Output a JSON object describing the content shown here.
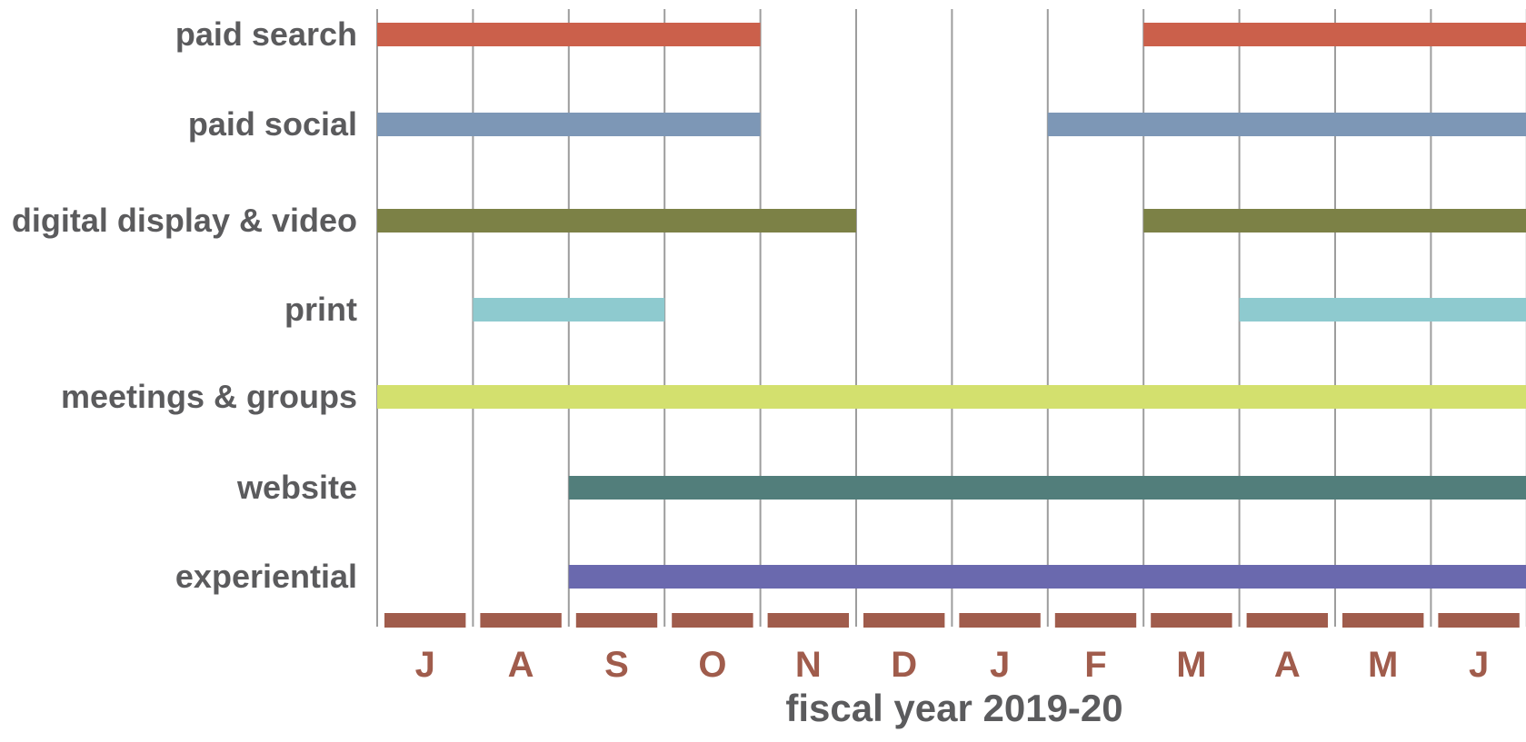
{
  "chart_data": {
    "type": "bar",
    "subtype": "gantt",
    "xlabel": "fiscal year 2019-20",
    "months": [
      "J",
      "A",
      "S",
      "O",
      "N",
      "D",
      "J",
      "F",
      "M",
      "A",
      "M",
      "J"
    ],
    "month_marker_color": "#a05c4c",
    "grid": true,
    "series": [
      {
        "name": "paid search",
        "color": "#cb604b",
        "segments": [
          {
            "start": 0,
            "end": 4
          },
          {
            "start": 8,
            "end": 12
          }
        ]
      },
      {
        "name": "paid social",
        "color": "#7d97b6",
        "segments": [
          {
            "start": 0,
            "end": 4
          },
          {
            "start": 7,
            "end": 12
          }
        ]
      },
      {
        "name": "digital display & video",
        "color": "#7c8146",
        "segments": [
          {
            "start": 0,
            "end": 5
          },
          {
            "start": 8,
            "end": 12
          }
        ]
      },
      {
        "name": "print",
        "color": "#8ecacf",
        "segments": [
          {
            "start": 1,
            "end": 3
          },
          {
            "start": 9,
            "end": 12
          }
        ]
      },
      {
        "name": "meetings & groups",
        "color": "#d3e06e",
        "segments": [
          {
            "start": 0,
            "end": 12
          }
        ]
      },
      {
        "name": "website",
        "color": "#527e7b",
        "segments": [
          {
            "start": 2,
            "end": 12
          }
        ]
      },
      {
        "name": "experiential",
        "color": "#6a69ae",
        "segments": [
          {
            "start": 2,
            "end": 12
          }
        ]
      }
    ]
  }
}
